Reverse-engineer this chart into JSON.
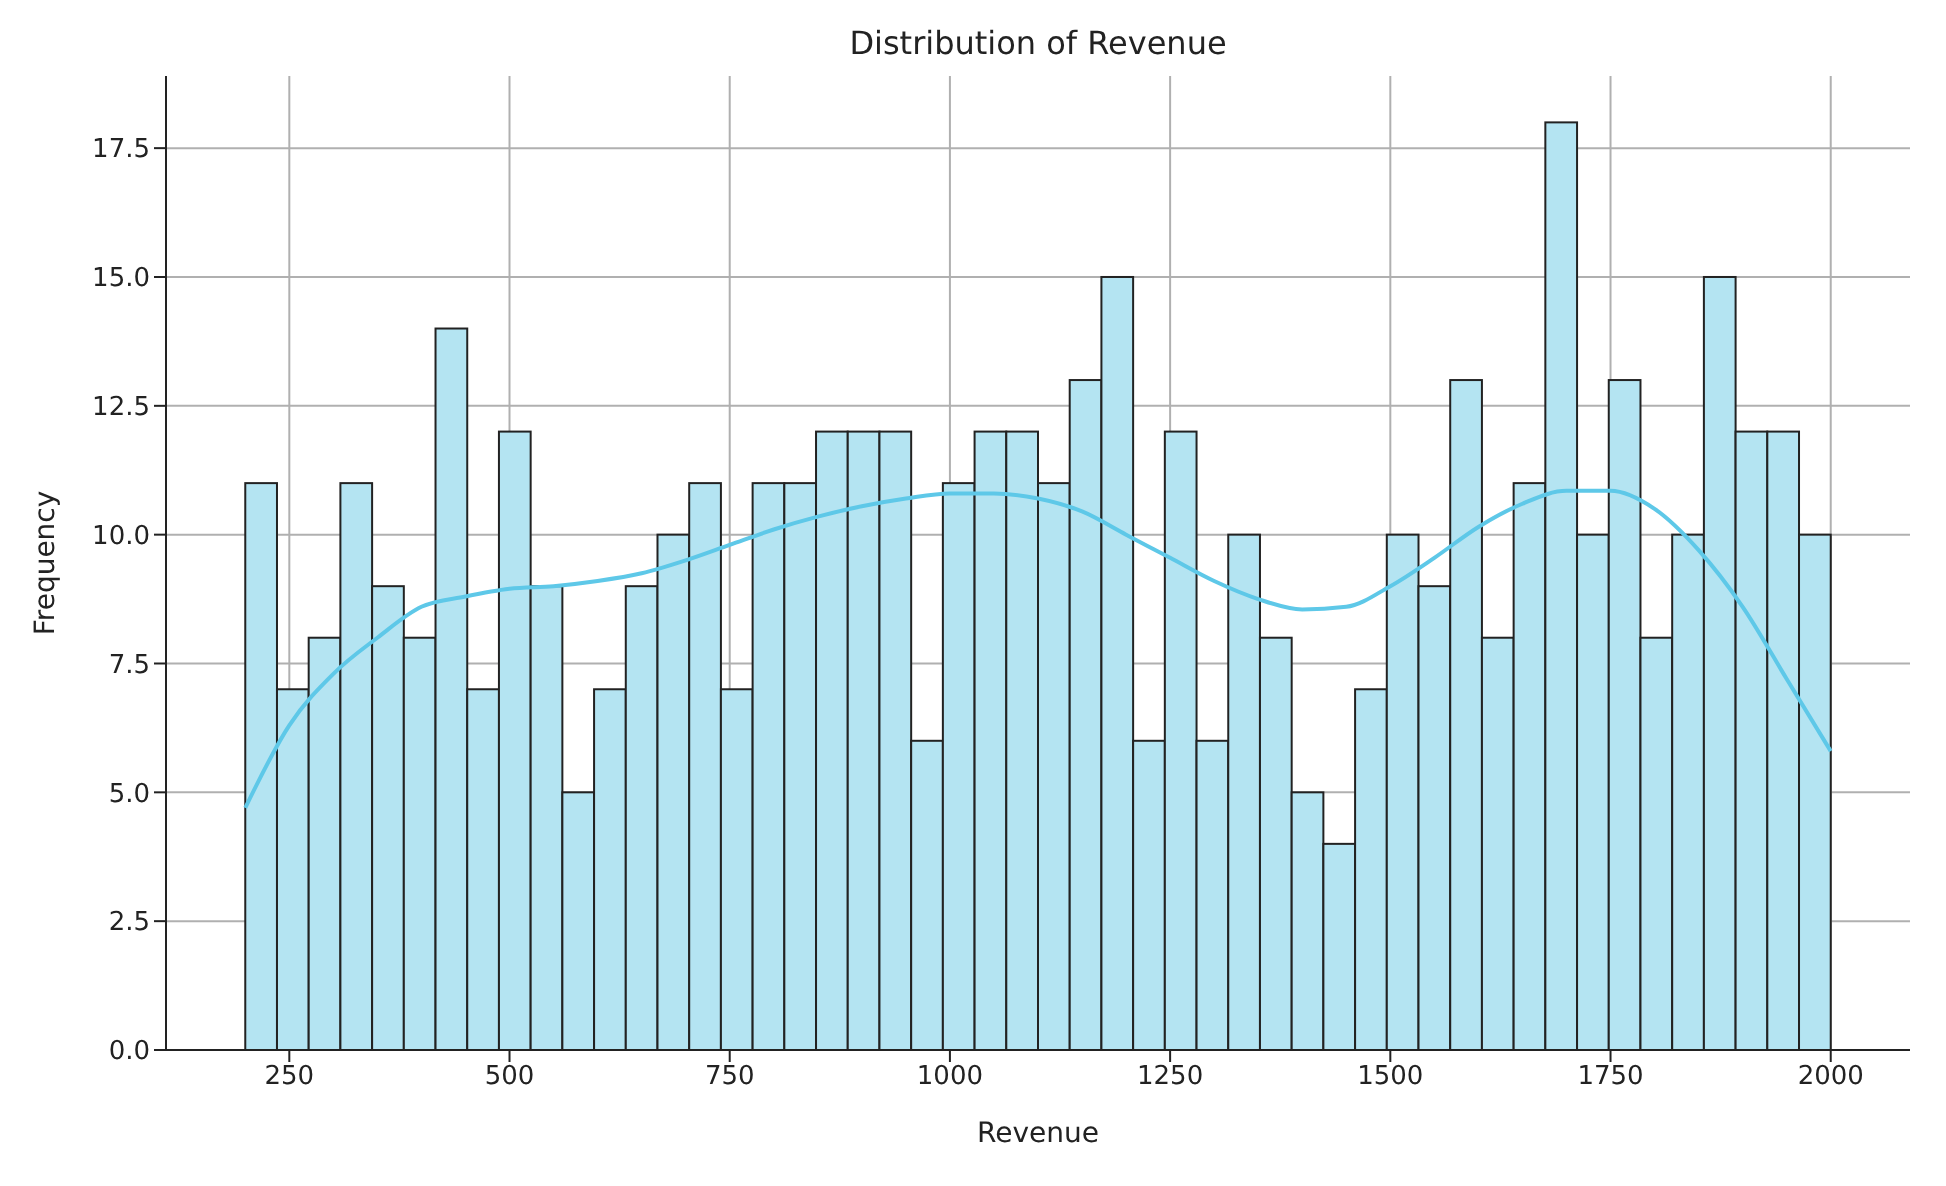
{
  "chart_data": {
    "type": "histogram",
    "title": "Distribution of Revenue",
    "xlabel": "Revenue",
    "ylabel": "Frequency",
    "bins": [
      200,
      236,
      272,
      308,
      344,
      380,
      416,
      452,
      488,
      524,
      560,
      596,
      632,
      668,
      704,
      740,
      776,
      812,
      848,
      884,
      920,
      956,
      992,
      1028,
      1064,
      1100,
      1136,
      1172,
      1208,
      1244,
      1280,
      1316,
      1352,
      1388,
      1424,
      1460,
      1496,
      1532,
      1568,
      1604,
      1640,
      1676,
      1712,
      1748,
      1784,
      1820,
      1856,
      1892,
      1928,
      1964,
      2000
    ],
    "series": [
      {
        "color": "#b4e4f2",
        "values": [
          11,
          7,
          8,
          11,
          9,
          8,
          14,
          7,
          12,
          9,
          5,
          7,
          9,
          10,
          11,
          7,
          11,
          11,
          12,
          12,
          12,
          6,
          11,
          12,
          12,
          11,
          13,
          15,
          6,
          12,
          6,
          10,
          8,
          5,
          4,
          7,
          10,
          9,
          13,
          8,
          11,
          18,
          10,
          13,
          8,
          10,
          15,
          12,
          12,
          10
        ]
      },
      {
        "type": "line",
        "color": "#5ec8e8",
        "x": [
          200,
          250,
          300,
          350,
          400,
          450,
          500,
          550,
          600,
          650,
          700,
          750,
          800,
          850,
          900,
          950,
          1000,
          1050,
          1100,
          1150,
          1200,
          1250,
          1300,
          1350,
          1400,
          1450,
          1500,
          1550,
          1600,
          1650,
          1700,
          1750,
          1800,
          1850,
          1900,
          1950,
          2000
        ],
        "values": [
          4.7,
          6.3,
          7.3,
          8.0,
          8.6,
          8.8,
          8.95,
          9.0,
          9.1,
          9.25,
          9.5,
          9.8,
          10.1,
          10.35,
          10.55,
          10.7,
          10.8,
          10.8,
          10.7,
          10.45,
          10.0,
          9.55,
          9.1,
          8.75,
          8.55,
          8.6,
          9.0,
          9.55,
          10.15,
          10.6,
          10.85,
          10.85,
          10.5,
          9.7,
          8.6,
          7.2,
          5.8
        ]
      }
    ],
    "xlim": [
      110,
      2090
    ],
    "xticks": [
      250,
      500,
      750,
      1000,
      1250,
      1500,
      1750,
      2000
    ],
    "ylim": [
      0,
      18.9
    ],
    "yticks": [
      {
        "value": 0,
        "label": "0.0"
      },
      {
        "value": 2.5,
        "label": "2.5"
      },
      {
        "value": 5,
        "label": "5.0"
      },
      {
        "value": 7.5,
        "label": "7.5"
      },
      {
        "value": 10,
        "label": "10.0"
      },
      {
        "value": 12.5,
        "label": "12.5"
      },
      {
        "value": 15,
        "label": "15.0"
      },
      {
        "value": 17.5,
        "label": "17.5"
      }
    ],
    "grid": true
  }
}
